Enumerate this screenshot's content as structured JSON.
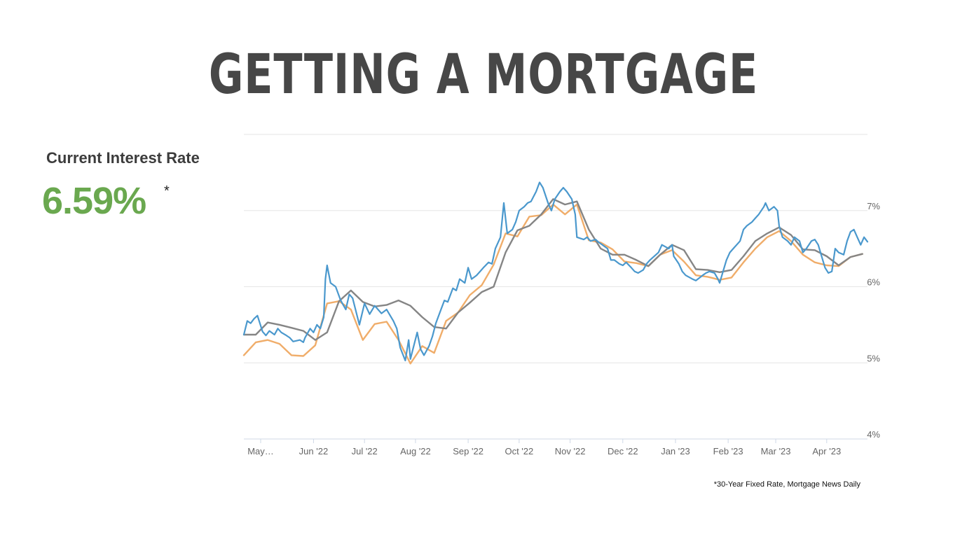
{
  "page": {
    "title": "GETTING A MORTGAGE",
    "rate_label": "Current Interest Rate",
    "rate_value": "6.59%",
    "rate_asterisk": "*",
    "footnote": "*30-Year Fixed Rate, Mortgage News Daily"
  },
  "colors": {
    "daily": "#4a98cd",
    "gray": "#858585",
    "orange": "#f0ad6a",
    "green": "#6aa84f",
    "grid": "#e6e6e6"
  },
  "chart_data": {
    "type": "line",
    "title": "",
    "xlabel": "",
    "ylabel": "",
    "x_tick_labels": [
      "May…",
      "Jun '22",
      "Jul '22",
      "Aug '22",
      "Sep '22",
      "Oct '22",
      "Nov '22",
      "Dec '22",
      "Jan '23",
      "Feb '23",
      "Mar '23",
      "Apr '23"
    ],
    "y_ticks": [
      "4%",
      "5%",
      "6%",
      "7%"
    ],
    "ylim": [
      4.0,
      8.0
    ],
    "xlim": [
      "2022-04-28",
      "2023-04-30"
    ],
    "grid": true,
    "legend": "none",
    "series": [
      {
        "color": "#4a98cd",
        "points": [
          [
            "2022-04-28",
            5.37
          ],
          [
            "2022-04-30",
            5.55
          ],
          [
            "2022-05-02",
            5.52
          ],
          [
            "2022-05-04",
            5.58
          ],
          [
            "2022-05-06",
            5.62
          ],
          [
            "2022-05-09",
            5.41
          ],
          [
            "2022-05-11",
            5.36
          ],
          [
            "2022-05-13",
            5.42
          ],
          [
            "2022-05-16",
            5.37
          ],
          [
            "2022-05-18",
            5.45
          ],
          [
            "2022-05-20",
            5.4
          ],
          [
            "2022-05-23",
            5.36
          ],
          [
            "2022-05-25",
            5.33
          ],
          [
            "2022-05-27",
            5.28
          ],
          [
            "2022-05-31",
            5.3
          ],
          [
            "2022-06-02",
            5.27
          ],
          [
            "2022-06-03",
            5.33
          ],
          [
            "2022-06-06",
            5.45
          ],
          [
            "2022-06-08",
            5.4
          ],
          [
            "2022-06-10",
            5.5
          ],
          [
            "2022-06-12",
            5.45
          ],
          [
            "2022-06-14",
            5.6
          ],
          [
            "2022-06-15",
            6.1
          ],
          [
            "2022-06-16",
            6.28
          ],
          [
            "2022-06-18",
            6.05
          ],
          [
            "2022-06-21",
            6.0
          ],
          [
            "2022-06-24",
            5.82
          ],
          [
            "2022-06-27",
            5.7
          ],
          [
            "2022-06-29",
            5.9
          ],
          [
            "2022-07-01",
            5.85
          ],
          [
            "2022-07-05",
            5.5
          ],
          [
            "2022-07-08",
            5.78
          ],
          [
            "2022-07-11",
            5.64
          ],
          [
            "2022-07-14",
            5.75
          ],
          [
            "2022-07-18",
            5.65
          ],
          [
            "2022-07-21",
            5.7
          ],
          [
            "2022-07-25",
            5.55
          ],
          [
            "2022-07-27",
            5.45
          ],
          [
            "2022-07-29",
            5.2
          ],
          [
            "2022-08-01",
            5.03
          ],
          [
            "2022-08-03",
            5.3
          ],
          [
            "2022-08-04",
            5.05
          ],
          [
            "2022-08-08",
            5.4
          ],
          [
            "2022-08-10",
            5.18
          ],
          [
            "2022-08-12",
            5.1
          ],
          [
            "2022-08-15",
            5.22
          ],
          [
            "2022-08-17",
            5.35
          ],
          [
            "2022-08-19",
            5.52
          ],
          [
            "2022-08-22",
            5.7
          ],
          [
            "2022-08-24",
            5.82
          ],
          [
            "2022-08-26",
            5.8
          ],
          [
            "2022-08-29",
            5.98
          ],
          [
            "2022-08-31",
            5.95
          ],
          [
            "2022-09-02",
            6.1
          ],
          [
            "2022-09-05",
            6.05
          ],
          [
            "2022-09-07",
            6.25
          ],
          [
            "2022-09-09",
            6.1
          ],
          [
            "2022-09-12",
            6.15
          ],
          [
            "2022-09-14",
            6.2
          ],
          [
            "2022-09-16",
            6.25
          ],
          [
            "2022-09-19",
            6.32
          ],
          [
            "2022-09-21",
            6.3
          ],
          [
            "2022-09-23",
            6.5
          ],
          [
            "2022-09-26",
            6.65
          ],
          [
            "2022-09-28",
            7.1
          ],
          [
            "2022-09-30",
            6.7
          ],
          [
            "2022-10-03",
            6.75
          ],
          [
            "2022-10-05",
            6.85
          ],
          [
            "2022-10-07",
            7.0
          ],
          [
            "2022-10-10",
            7.05
          ],
          [
            "2022-10-12",
            7.1
          ],
          [
            "2022-10-14",
            7.12
          ],
          [
            "2022-10-17",
            7.25
          ],
          [
            "2022-10-19",
            7.37
          ],
          [
            "2022-10-21",
            7.3
          ],
          [
            "2022-10-24",
            7.1
          ],
          [
            "2022-10-26",
            7.0
          ],
          [
            "2022-10-28",
            7.15
          ],
          [
            "2022-10-31",
            7.25
          ],
          [
            "2022-11-02",
            7.3
          ],
          [
            "2022-11-04",
            7.25
          ],
          [
            "2022-11-07",
            7.15
          ],
          [
            "2022-11-09",
            6.95
          ],
          [
            "2022-11-10",
            6.65
          ],
          [
            "2022-11-14",
            6.62
          ],
          [
            "2022-11-16",
            6.65
          ],
          [
            "2022-11-18",
            6.6
          ],
          [
            "2022-11-21",
            6.62
          ],
          [
            "2022-11-23",
            6.58
          ],
          [
            "2022-11-25",
            6.55
          ],
          [
            "2022-11-28",
            6.5
          ],
          [
            "2022-11-30",
            6.35
          ],
          [
            "2022-12-02",
            6.35
          ],
          [
            "2022-12-05",
            6.3
          ],
          [
            "2022-12-07",
            6.28
          ],
          [
            "2022-12-09",
            6.32
          ],
          [
            "2022-12-12",
            6.25
          ],
          [
            "2022-12-14",
            6.2
          ],
          [
            "2022-12-16",
            6.18
          ],
          [
            "2022-12-19",
            6.22
          ],
          [
            "2022-12-21",
            6.3
          ],
          [
            "2022-12-23",
            6.35
          ],
          [
            "2022-12-28",
            6.45
          ],
          [
            "2022-12-30",
            6.55
          ],
          [
            "2023-01-03",
            6.5
          ],
          [
            "2023-01-05",
            6.55
          ],
          [
            "2023-01-06",
            6.4
          ],
          [
            "2023-01-09",
            6.3
          ],
          [
            "2023-01-11",
            6.2
          ],
          [
            "2023-01-13",
            6.15
          ],
          [
            "2023-01-17",
            6.1
          ],
          [
            "2023-01-19",
            6.08
          ],
          [
            "2023-01-23",
            6.15
          ],
          [
            "2023-01-25",
            6.18
          ],
          [
            "2023-01-27",
            6.2
          ],
          [
            "2023-01-30",
            6.18
          ],
          [
            "2023-02-01",
            6.1
          ],
          [
            "2023-02-02",
            6.05
          ],
          [
            "2023-02-06",
            6.35
          ],
          [
            "2023-02-08",
            6.45
          ],
          [
            "2023-02-10",
            6.5
          ],
          [
            "2023-02-14",
            6.6
          ],
          [
            "2023-02-16",
            6.75
          ],
          [
            "2023-02-18",
            6.8
          ],
          [
            "2023-02-21",
            6.85
          ],
          [
            "2023-02-23",
            6.9
          ],
          [
            "2023-02-25",
            6.95
          ],
          [
            "2023-02-28",
            7.05
          ],
          [
            "2023-03-01",
            7.1
          ],
          [
            "2023-03-03",
            7.0
          ],
          [
            "2023-03-06",
            7.05
          ],
          [
            "2023-03-08",
            7.0
          ],
          [
            "2023-03-09",
            6.8
          ],
          [
            "2023-03-11",
            6.65
          ],
          [
            "2023-03-14",
            6.6
          ],
          [
            "2023-03-16",
            6.55
          ],
          [
            "2023-03-18",
            6.65
          ],
          [
            "2023-03-21",
            6.6
          ],
          [
            "2023-03-23",
            6.45
          ],
          [
            "2023-03-25",
            6.5
          ],
          [
            "2023-03-28",
            6.6
          ],
          [
            "2023-03-30",
            6.62
          ],
          [
            "2023-04-01",
            6.55
          ],
          [
            "2023-04-03",
            6.4
          ],
          [
            "2023-04-05",
            6.25
          ],
          [
            "2023-04-07",
            6.18
          ],
          [
            "2023-04-09",
            6.2
          ],
          [
            "2023-04-11",
            6.5
          ],
          [
            "2023-04-13",
            6.45
          ],
          [
            "2023-04-16",
            6.42
          ],
          [
            "2023-04-18",
            6.6
          ],
          [
            "2023-04-20",
            6.72
          ],
          [
            "2023-04-22",
            6.75
          ],
          [
            "2023-04-24",
            6.65
          ],
          [
            "2023-04-26",
            6.55
          ],
          [
            "2023-04-28",
            6.65
          ],
          [
            "2023-04-30",
            6.59
          ]
        ]
      },
      {
        "color": "#858585",
        "points": [
          [
            "2022-04-28",
            5.37
          ],
          [
            "2022-05-05",
            5.37
          ],
          [
            "2022-05-12",
            5.53
          ],
          [
            "2022-05-19",
            5.5
          ],
          [
            "2022-05-26",
            5.46
          ],
          [
            "2022-06-02",
            5.42
          ],
          [
            "2022-06-09",
            5.3
          ],
          [
            "2022-06-16",
            5.4
          ],
          [
            "2022-06-23",
            5.81
          ],
          [
            "2022-06-30",
            5.95
          ],
          [
            "2022-07-07",
            5.8
          ],
          [
            "2022-07-14",
            5.74
          ],
          [
            "2022-07-21",
            5.76
          ],
          [
            "2022-07-28",
            5.82
          ],
          [
            "2022-08-04",
            5.75
          ],
          [
            "2022-08-11",
            5.6
          ],
          [
            "2022-08-18",
            5.47
          ],
          [
            "2022-08-25",
            5.45
          ],
          [
            "2022-09-01",
            5.66
          ],
          [
            "2022-09-08",
            5.79
          ],
          [
            "2022-09-15",
            5.93
          ],
          [
            "2022-09-22",
            6.0
          ],
          [
            "2022-09-29",
            6.45
          ],
          [
            "2022-10-06",
            6.74
          ],
          [
            "2022-10-13",
            6.8
          ],
          [
            "2022-10-20",
            6.95
          ],
          [
            "2022-10-27",
            7.15
          ],
          [
            "2022-11-03",
            7.08
          ],
          [
            "2022-11-10",
            7.12
          ],
          [
            "2022-11-17",
            6.75
          ],
          [
            "2022-11-24",
            6.5
          ],
          [
            "2022-12-01",
            6.42
          ],
          [
            "2022-12-08",
            6.42
          ],
          [
            "2022-12-15",
            6.35
          ],
          [
            "2022-12-22",
            6.27
          ],
          [
            "2022-12-29",
            6.42
          ],
          [
            "2023-01-05",
            6.55
          ],
          [
            "2023-01-12",
            6.48
          ],
          [
            "2023-01-19",
            6.23
          ],
          [
            "2023-01-26",
            6.22
          ],
          [
            "2023-02-02",
            6.19
          ],
          [
            "2023-02-09",
            6.22
          ],
          [
            "2023-02-16",
            6.4
          ],
          [
            "2023-02-23",
            6.6
          ],
          [
            "2023-03-02",
            6.7
          ],
          [
            "2023-03-09",
            6.78
          ],
          [
            "2023-03-16",
            6.68
          ],
          [
            "2023-03-23",
            6.49
          ],
          [
            "2023-03-30",
            6.48
          ],
          [
            "2023-04-06",
            6.4
          ],
          [
            "2023-04-13",
            6.28
          ],
          [
            "2023-04-20",
            6.39
          ],
          [
            "2023-04-27",
            6.43
          ]
        ]
      },
      {
        "color": "#f0ad6a",
        "points": [
          [
            "2022-04-28",
            5.1
          ],
          [
            "2022-05-05",
            5.27
          ],
          [
            "2022-05-12",
            5.3
          ],
          [
            "2022-05-19",
            5.25
          ],
          [
            "2022-05-26",
            5.1
          ],
          [
            "2022-06-02",
            5.09
          ],
          [
            "2022-06-09",
            5.23
          ],
          [
            "2022-06-16",
            5.78
          ],
          [
            "2022-06-23",
            5.81
          ],
          [
            "2022-06-30",
            5.7
          ],
          [
            "2022-07-07",
            5.3
          ],
          [
            "2022-07-14",
            5.51
          ],
          [
            "2022-07-21",
            5.54
          ],
          [
            "2022-07-28",
            5.3
          ],
          [
            "2022-08-04",
            4.99
          ],
          [
            "2022-08-11",
            5.22
          ],
          [
            "2022-08-18",
            5.13
          ],
          [
            "2022-08-25",
            5.55
          ],
          [
            "2022-09-01",
            5.66
          ],
          [
            "2022-09-08",
            5.89
          ],
          [
            "2022-09-15",
            6.02
          ],
          [
            "2022-09-22",
            6.29
          ],
          [
            "2022-09-29",
            6.7
          ],
          [
            "2022-10-06",
            6.66
          ],
          [
            "2022-10-13",
            6.92
          ],
          [
            "2022-10-20",
            6.94
          ],
          [
            "2022-10-27",
            7.08
          ],
          [
            "2022-11-03",
            6.95
          ],
          [
            "2022-11-10",
            7.08
          ],
          [
            "2022-11-17",
            6.61
          ],
          [
            "2022-11-24",
            6.58
          ],
          [
            "2022-12-01",
            6.49
          ],
          [
            "2022-12-08",
            6.33
          ],
          [
            "2022-12-15",
            6.31
          ],
          [
            "2022-12-22",
            6.27
          ],
          [
            "2022-12-29",
            6.42
          ],
          [
            "2023-01-05",
            6.48
          ],
          [
            "2023-01-12",
            6.33
          ],
          [
            "2023-01-19",
            6.15
          ],
          [
            "2023-01-26",
            6.13
          ],
          [
            "2023-02-02",
            6.09
          ],
          [
            "2023-02-09",
            6.12
          ],
          [
            "2023-02-16",
            6.32
          ],
          [
            "2023-02-23",
            6.5
          ],
          [
            "2023-03-02",
            6.65
          ],
          [
            "2023-03-09",
            6.73
          ],
          [
            "2023-03-16",
            6.6
          ],
          [
            "2023-03-23",
            6.42
          ],
          [
            "2023-03-30",
            6.32
          ],
          [
            "2023-04-06",
            6.28
          ],
          [
            "2023-04-13",
            6.27
          ],
          [
            "2023-04-20",
            6.39
          ],
          [
            "2023-04-27",
            6.43
          ]
        ]
      }
    ]
  }
}
